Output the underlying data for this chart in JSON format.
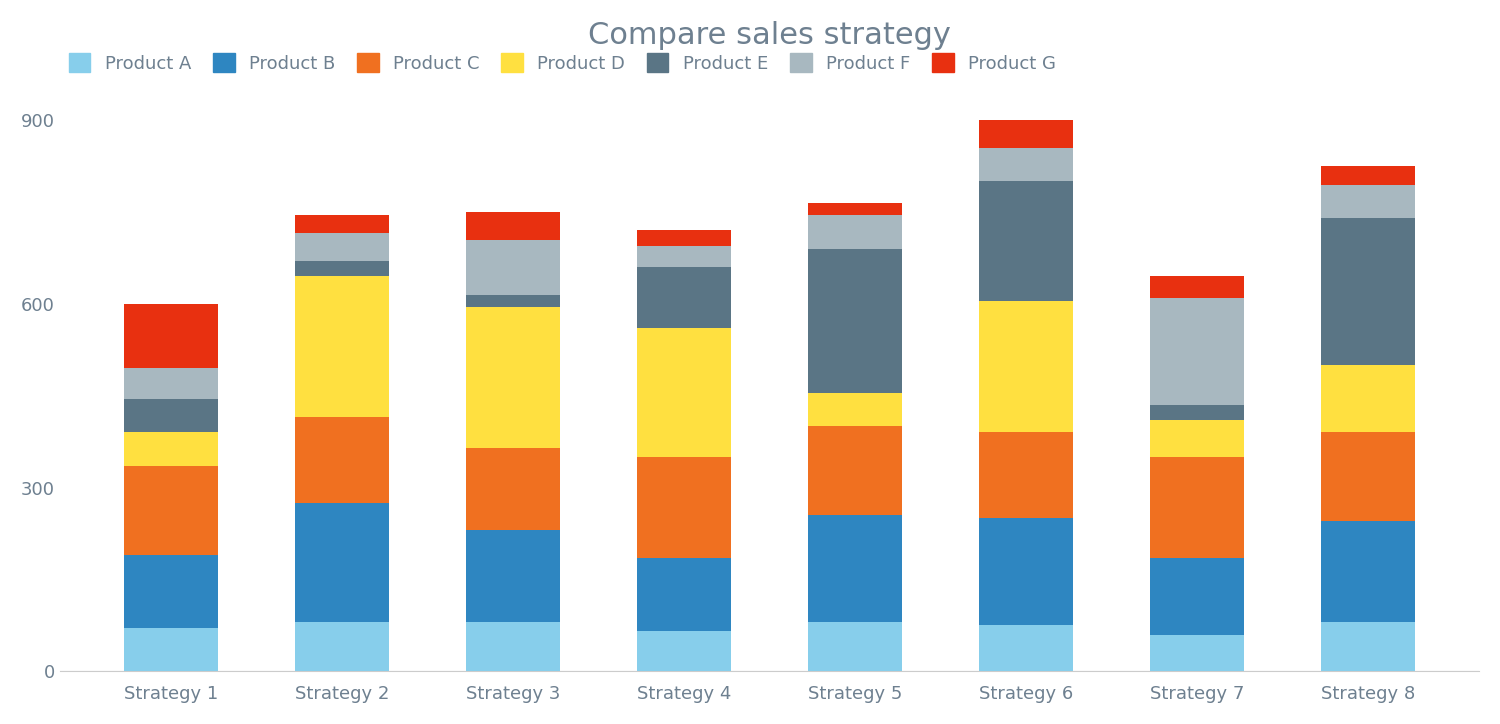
{
  "title": "Compare sales strategy",
  "categories": [
    "Strategy 1",
    "Strategy 2",
    "Strategy 3",
    "Strategy 4",
    "Strategy 5",
    "Strategy 6",
    "Strategy 7",
    "Strategy 8"
  ],
  "products": [
    "Product A",
    "Product B",
    "Product C",
    "Product D",
    "Product E",
    "Product F",
    "Product G"
  ],
  "colors": [
    "#87CEEB",
    "#2E86C1",
    "#F07020",
    "#FFE040",
    "#5A7585",
    "#A8B8C0",
    "#E83010"
  ],
  "values": {
    "Product A": [
      70,
      80,
      80,
      65,
      80,
      75,
      60,
      80
    ],
    "Product B": [
      120,
      195,
      150,
      120,
      175,
      175,
      125,
      165
    ],
    "Product C": [
      145,
      140,
      135,
      165,
      145,
      140,
      165,
      145
    ],
    "Product D": [
      55,
      230,
      230,
      210,
      55,
      215,
      60,
      110
    ],
    "Product E": [
      55,
      25,
      20,
      100,
      235,
      195,
      25,
      240
    ],
    "Product F": [
      50,
      45,
      90,
      35,
      55,
      55,
      175,
      55
    ],
    "Product G": [
      105,
      30,
      45,
      25,
      20,
      50,
      35,
      30
    ]
  },
  "ylim": [
    0,
    900
  ],
  "yticks": [
    0,
    300,
    600,
    900
  ],
  "background_color": "#FFFFFF",
  "title_color": "#6E8090",
  "title_fontsize": 22,
  "legend_fontsize": 13,
  "tick_fontsize": 13,
  "bar_width": 0.55
}
